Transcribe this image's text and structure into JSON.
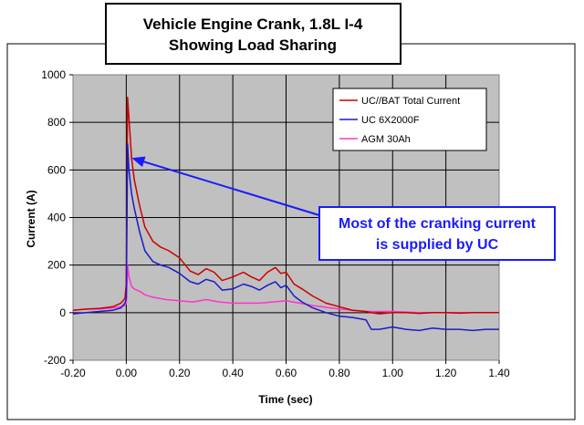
{
  "chart_data": {
    "type": "line",
    "title_lines": [
      "Vehicle Engine Crank, 1.8L I-4",
      "Showing Load Sharing"
    ],
    "xlabel": "Time (sec)",
    "ylabel": "Current (A)",
    "xlim": [
      -0.2,
      1.4
    ],
    "ylim": [
      -200,
      1000
    ],
    "xticks": [
      -0.2,
      0.0,
      0.2,
      0.4,
      0.6,
      0.8,
      1.0,
      1.2,
      1.4
    ],
    "xtick_labels": [
      "-0.20",
      "0.00",
      "0.20",
      "0.40",
      "0.60",
      "0.80",
      "1.00",
      "1.20",
      "1.40"
    ],
    "yticks": [
      -200,
      0,
      200,
      400,
      600,
      800,
      1000
    ],
    "ytick_labels": [
      "-200",
      "0",
      "200",
      "400",
      "600",
      "800",
      "1000"
    ],
    "grid": true,
    "legend_position": "top-right",
    "series": [
      {
        "name": "UC//BAT Total Current",
        "color": "#cc0000",
        "x": [
          -0.2,
          -0.15,
          -0.1,
          -0.05,
          -0.02,
          -0.005,
          0.0,
          0.005,
          0.01,
          0.02,
          0.03,
          0.05,
          0.07,
          0.1,
          0.13,
          0.16,
          0.2,
          0.24,
          0.27,
          0.3,
          0.33,
          0.36,
          0.4,
          0.44,
          0.47,
          0.5,
          0.53,
          0.56,
          0.58,
          0.6,
          0.63,
          0.66,
          0.7,
          0.75,
          0.8,
          0.85,
          0.9,
          0.92,
          0.95,
          1.0,
          1.05,
          1.1,
          1.15,
          1.2,
          1.25,
          1.3,
          1.35,
          1.4
        ],
        "values": [
          10,
          15,
          18,
          25,
          40,
          60,
          120,
          905,
          820,
          650,
          560,
          450,
          360,
          300,
          275,
          260,
          230,
          175,
          160,
          185,
          170,
          135,
          150,
          170,
          150,
          135,
          170,
          190,
          165,
          170,
          120,
          100,
          70,
          40,
          25,
          10,
          5,
          0,
          -5,
          0,
          0,
          -3,
          0,
          0,
          -2,
          0,
          0,
          0
        ]
      },
      {
        "name": "UC 6X2000F",
        "color": "#1a1acc",
        "x": [
          -0.2,
          -0.15,
          -0.1,
          -0.05,
          -0.02,
          -0.005,
          0.0,
          0.005,
          0.01,
          0.02,
          0.03,
          0.05,
          0.07,
          0.1,
          0.13,
          0.16,
          0.2,
          0.24,
          0.27,
          0.3,
          0.33,
          0.36,
          0.4,
          0.44,
          0.47,
          0.5,
          0.53,
          0.56,
          0.58,
          0.6,
          0.63,
          0.66,
          0.7,
          0.75,
          0.8,
          0.85,
          0.9,
          0.92,
          0.95,
          1.0,
          1.05,
          1.1,
          1.15,
          1.2,
          1.25,
          1.3,
          1.35,
          1.4
        ],
        "values": [
          -5,
          0,
          5,
          10,
          20,
          40,
          60,
          710,
          600,
          500,
          440,
          340,
          260,
          215,
          200,
          190,
          165,
          130,
          120,
          140,
          130,
          95,
          100,
          120,
          110,
          95,
          115,
          130,
          105,
          115,
          70,
          45,
          20,
          0,
          -15,
          -20,
          -30,
          -70,
          -70,
          -60,
          -70,
          -75,
          -65,
          -70,
          -70,
          -75,
          -70,
          -70
        ]
      },
      {
        "name": "AGM 30Ah",
        "color": "#ff33cc",
        "x": [
          -0.2,
          -0.15,
          -0.1,
          -0.05,
          -0.02,
          -0.005,
          0.0,
          0.005,
          0.01,
          0.02,
          0.03,
          0.05,
          0.07,
          0.1,
          0.15,
          0.2,
          0.25,
          0.3,
          0.35,
          0.4,
          0.45,
          0.5,
          0.55,
          0.6,
          0.65,
          0.7,
          0.8,
          0.9,
          1.0,
          1.1,
          1.2,
          1.3,
          1.4
        ],
        "values": [
          10,
          15,
          15,
          20,
          25,
          30,
          40,
          200,
          150,
          110,
          100,
          90,
          75,
          65,
          55,
          50,
          45,
          55,
          45,
          40,
          40,
          40,
          45,
          50,
          40,
          30,
          15,
          5,
          5,
          0,
          0,
          0,
          0
        ]
      }
    ],
    "annotation": {
      "lines": [
        "Most of the cranking current",
        "is supplied by UC"
      ],
      "color": "#1a1aff",
      "arrow_to": [
        0.0,
        650
      ]
    }
  }
}
